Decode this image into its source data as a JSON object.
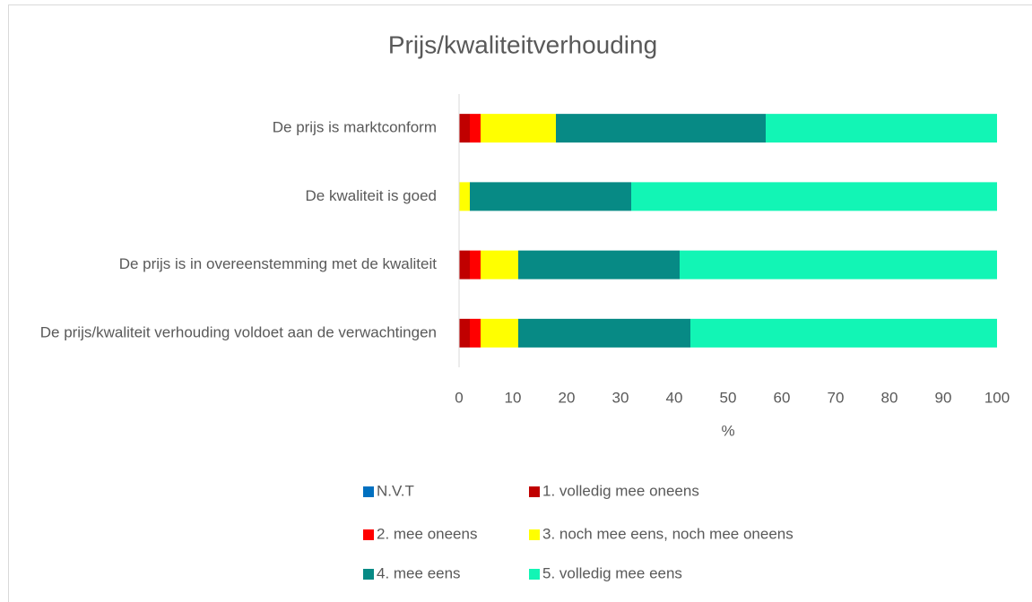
{
  "chart_data": {
    "type": "stacked_barh",
    "title": "Prijs/kwaliteitverhouding",
    "categories": [
      "De prijs is marktconform",
      "De kwaliteit is goed",
      "De prijs is in overeenstemming met de kwaliteit",
      "De prijs/kwaliteit verhouding voldoet aan de verwachtingen"
    ],
    "series": [
      {
        "name": "N.V.T",
        "color": "#0070c0",
        "values": [
          0,
          0,
          0,
          0
        ]
      },
      {
        "name": "1. volledig mee oneens",
        "color": "#c00000",
        "values": [
          2,
          0,
          2,
          2
        ]
      },
      {
        "name": "2. mee oneens",
        "color": "#ff0000",
        "values": [
          2,
          0,
          2,
          2
        ]
      },
      {
        "name": "3. noch mee eens, noch mee oneens",
        "color": "#ffff00",
        "values": [
          14,
          2,
          7,
          7
        ]
      },
      {
        "name": "4. mee eens",
        "color": "#078a85",
        "values": [
          39,
          30,
          30,
          32
        ]
      },
      {
        "name": "5. volledig mee eens",
        "color": "#12f5b5",
        "values": [
          43,
          68,
          59,
          57
        ]
      }
    ],
    "xlabel": "%",
    "xlim": [
      0,
      100
    ],
    "xticks": [
      0,
      10,
      20,
      30,
      40,
      50,
      60,
      70,
      80,
      90,
      100
    ],
    "grid": false,
    "legend": "bottom"
  }
}
